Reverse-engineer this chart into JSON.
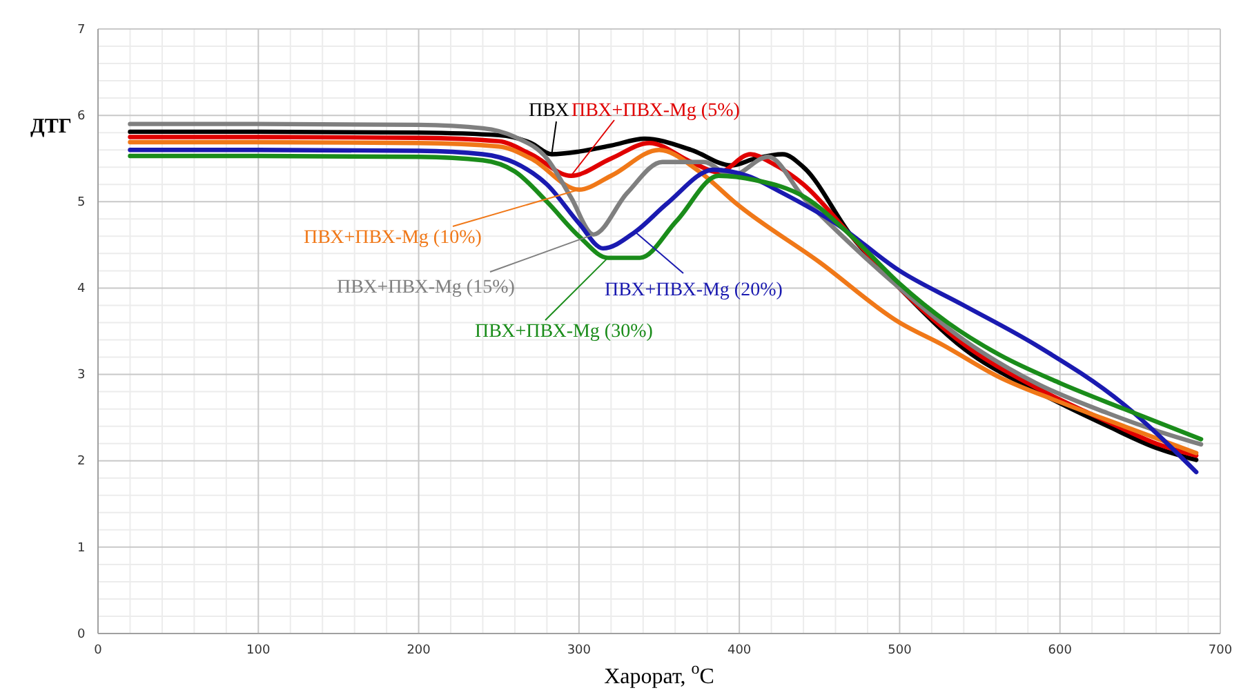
{
  "chart_data": {
    "type": "line",
    "xlabel": "Харорат, $^{o}$C",
    "ylabel": "ДТГ",
    "xlim": [
      0,
      700
    ],
    "ylim": [
      0,
      7
    ],
    "xticks": [
      0,
      100,
      200,
      300,
      400,
      500,
      600,
      700
    ],
    "yticks": [
      0,
      1,
      2,
      3,
      4,
      5,
      6,
      7
    ],
    "grid": true,
    "marker": "none",
    "line_style": "solid",
    "series": [
      {
        "name": "ПВХ",
        "color": "#000000",
        "x": [
          20,
          100,
          200,
          250,
          270,
          283,
          300,
          320,
          341,
          370,
          395,
          410,
          427,
          440,
          470,
          500,
          540,
          585,
          630,
          660,
          685
        ],
        "values": [
          5.81,
          5.81,
          5.8,
          5.77,
          5.68,
          5.55,
          5.58,
          5.65,
          5.73,
          5.6,
          5.42,
          5.5,
          5.55,
          5.4,
          4.6,
          4.0,
          3.3,
          2.81,
          2.4,
          2.15,
          2.01
        ]
      },
      {
        "name": "ПВХ+ПВХ-Mg (5%)",
        "color": "#e00000",
        "x": [
          20,
          100,
          200,
          250,
          270,
          295,
          320,
          344,
          370,
          387,
          407,
          420,
          440,
          470,
          500,
          540,
          585,
          630,
          660,
          685
        ],
        "values": [
          5.75,
          5.75,
          5.74,
          5.7,
          5.55,
          5.3,
          5.5,
          5.68,
          5.46,
          5.34,
          5.55,
          5.45,
          5.2,
          4.6,
          4.0,
          3.35,
          2.85,
          2.45,
          2.2,
          2.06
        ]
      },
      {
        "name": "ПВХ+ПВХ-Mg (10%)",
        "color": "#f07818",
        "x": [
          20,
          100,
          200,
          250,
          270,
          300,
          320,
          350,
          375,
          398,
          450,
          500,
          527,
          562,
          600,
          640,
          685
        ],
        "values": [
          5.69,
          5.69,
          5.68,
          5.64,
          5.5,
          5.14,
          5.3,
          5.6,
          5.35,
          4.98,
          4.3,
          3.6,
          3.34,
          2.97,
          2.68,
          2.4,
          2.09
        ]
      },
      {
        "name": "ПВХ+ПВХ-Mg (15%)",
        "color": "#7f7f7f",
        "x": [
          20,
          100,
          200,
          240,
          260,
          280,
          295,
          309,
          330,
          352,
          378,
          395,
          418,
          440,
          470,
          500,
          540,
          585,
          630,
          660,
          688
        ],
        "values": [
          5.9,
          5.9,
          5.89,
          5.85,
          5.75,
          5.5,
          5.05,
          4.62,
          5.1,
          5.46,
          5.46,
          5.3,
          5.52,
          5.05,
          4.5,
          4.0,
          3.4,
          2.9,
          2.55,
          2.35,
          2.19
        ]
      },
      {
        "name": "ПВХ+ПВХ-Mg (20%)",
        "color": "#1a1ab0",
        "x": [
          20,
          100,
          200,
          240,
          260,
          280,
          300,
          315,
          335,
          355,
          384,
          405,
          427,
          460,
          500,
          540,
          585,
          640,
          685
        ],
        "values": [
          5.6,
          5.6,
          5.59,
          5.55,
          5.45,
          5.2,
          4.75,
          4.46,
          4.65,
          4.98,
          5.37,
          5.3,
          5.1,
          4.75,
          4.2,
          3.8,
          3.34,
          2.65,
          1.87
        ]
      },
      {
        "name": "ПВХ+ПВХ-Mg (30%)",
        "color": "#1a8c1a",
        "x": [
          20,
          100,
          200,
          240,
          260,
          280,
          300,
          318,
          338,
          361,
          387,
          410,
          441,
          470,
          500,
          530,
          562,
          600,
          640,
          688
        ],
        "values": [
          5.53,
          5.53,
          5.52,
          5.48,
          5.35,
          5.0,
          4.6,
          4.35,
          4.35,
          4.78,
          5.3,
          5.25,
          5.05,
          4.6,
          4.05,
          3.6,
          3.23,
          2.9,
          2.6,
          2.25
        ]
      }
    ]
  }
}
